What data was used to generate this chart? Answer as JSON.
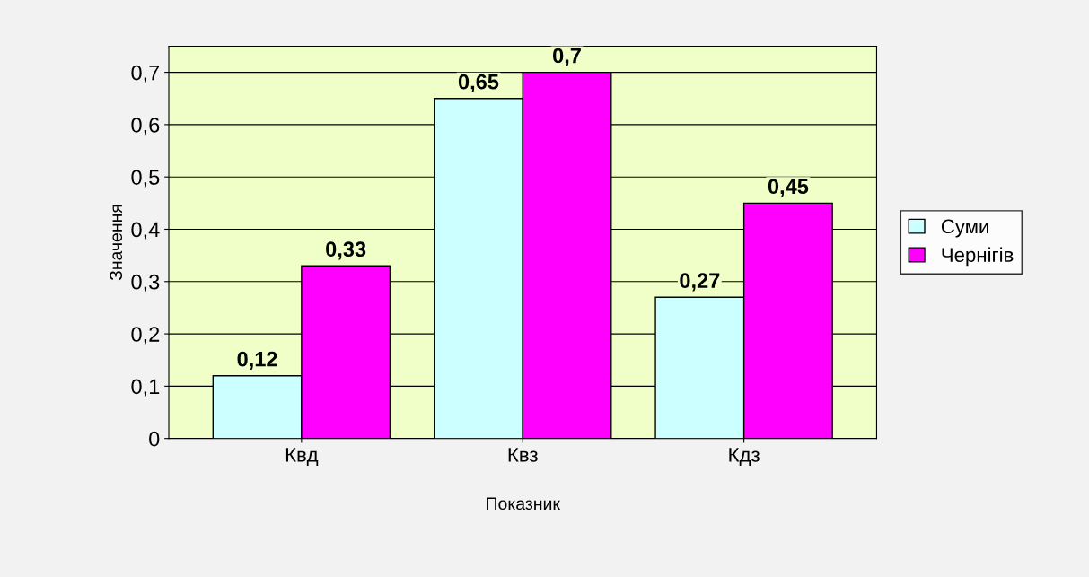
{
  "chart_data": {
    "type": "bar",
    "xlabel": "Показник",
    "ylabel": "Значення",
    "categories": [
      "Квд",
      "Квз",
      "Кдз"
    ],
    "series": [
      {
        "name": "Суми",
        "color": "#ccffff",
        "values": [
          0.12,
          0.65,
          0.27
        ],
        "value_labels": [
          "0,12",
          "0,65",
          "0,27"
        ]
      },
      {
        "name": "Чернігів",
        "color": "#ff00ff",
        "values": [
          0.33,
          0.7,
          0.45
        ],
        "value_labels": [
          "0,33",
          "0,7",
          "0,45"
        ]
      }
    ],
    "ylim": [
      0,
      0.75
    ],
    "yticks": [
      0,
      {
        "value": 0.1,
        "label": "0,1"
      },
      {
        "value": 0.2,
        "label": "0,2"
      },
      {
        "value": 0.3,
        "label": "0,3"
      },
      {
        "value": 0.4,
        "label": "0,4"
      },
      {
        "value": 0.5,
        "label": "0,5"
      },
      {
        "value": 0.6,
        "label": "0,6"
      },
      {
        "value": 0.7,
        "label": "0,7"
      }
    ],
    "grid": "y",
    "legend": "right"
  }
}
